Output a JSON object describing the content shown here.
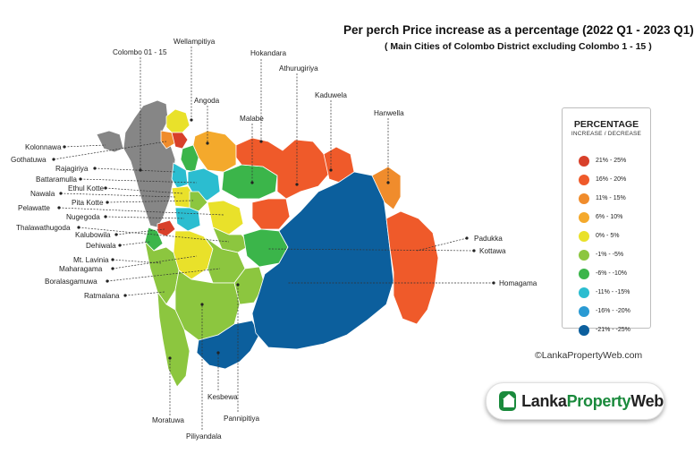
{
  "title": "Per perch Price increase as a percentage (2022 Q1 - 2023 Q1)",
  "subtitle": "( Main Cities of Colombo District excluding Colombo 1 - 15 )",
  "legend": {
    "title": "PERCENTAGE",
    "subtitle": "INCREASE / DECREASE",
    "items": [
      {
        "label": "21% - 25%",
        "color": "#d8402a"
      },
      {
        "label": "16% - 20%",
        "color": "#ef5a2a"
      },
      {
        "label": "11% - 15%",
        "color": "#f08c2c"
      },
      {
        "label": "6% - 10%",
        "color": "#f4a92c"
      },
      {
        "label": "0% - 5%",
        "color": "#e9e12a"
      },
      {
        "label": "-1% - -5%",
        "color": "#8cc63f"
      },
      {
        "label": "-6% - -10%",
        "color": "#3bb54a"
      },
      {
        "label": "-11% - -15%",
        "color": "#2bbdd0"
      },
      {
        "label": "-16% - -20%",
        "color": "#2a9ad3"
      },
      {
        "label": "-21% - -25%",
        "color": "#0c5f9d"
      }
    ]
  },
  "places": {
    "colombo": "Colombo 01 - 15",
    "wellampitiya": "Wellampitiya",
    "hokandara": "Hokandara",
    "athurugiriya": "Athurugiriya",
    "kaduwela": "Kaduwela",
    "angoda": "Angoda",
    "malabe": "Malabe",
    "hanwella": "Hanwella",
    "kolonnawa": "Kolonnawa",
    "gothatuwa": "Gothatuwa",
    "rajagiriya": "Rajagiriya",
    "battaramulla": "Battaramulla",
    "ethul_kotte": "Ethul Kotte",
    "nawala": "Nawala",
    "pita_kotte": "Pita Kotte",
    "pelawatte": "Pelawatte",
    "nugegoda": "Nugegoda",
    "thalawathugoda": "Thalawathugoda",
    "kalubowila": "Kalubowila",
    "dehiwala": "Dehiwala",
    "mt_lavinia": "Mt. Lavinia",
    "maharagama": "Maharagama",
    "boralasgamuwa": "Boralasgamuwa",
    "ratmalana": "Ratmalana",
    "padukka": "Padukka",
    "kottawa": "Kottawa",
    "homagama": "Homagama",
    "kesbewa": "Kesbewa",
    "moratuwa": "Moratuwa",
    "pannipitiya": "Pannipitiya",
    "piliyandala": "Piliyandala"
  },
  "credit": "©LankaPropertyWeb.com",
  "logo": {
    "part1": "Lanka",
    "part2": "Property",
    "part3": "Web"
  }
}
